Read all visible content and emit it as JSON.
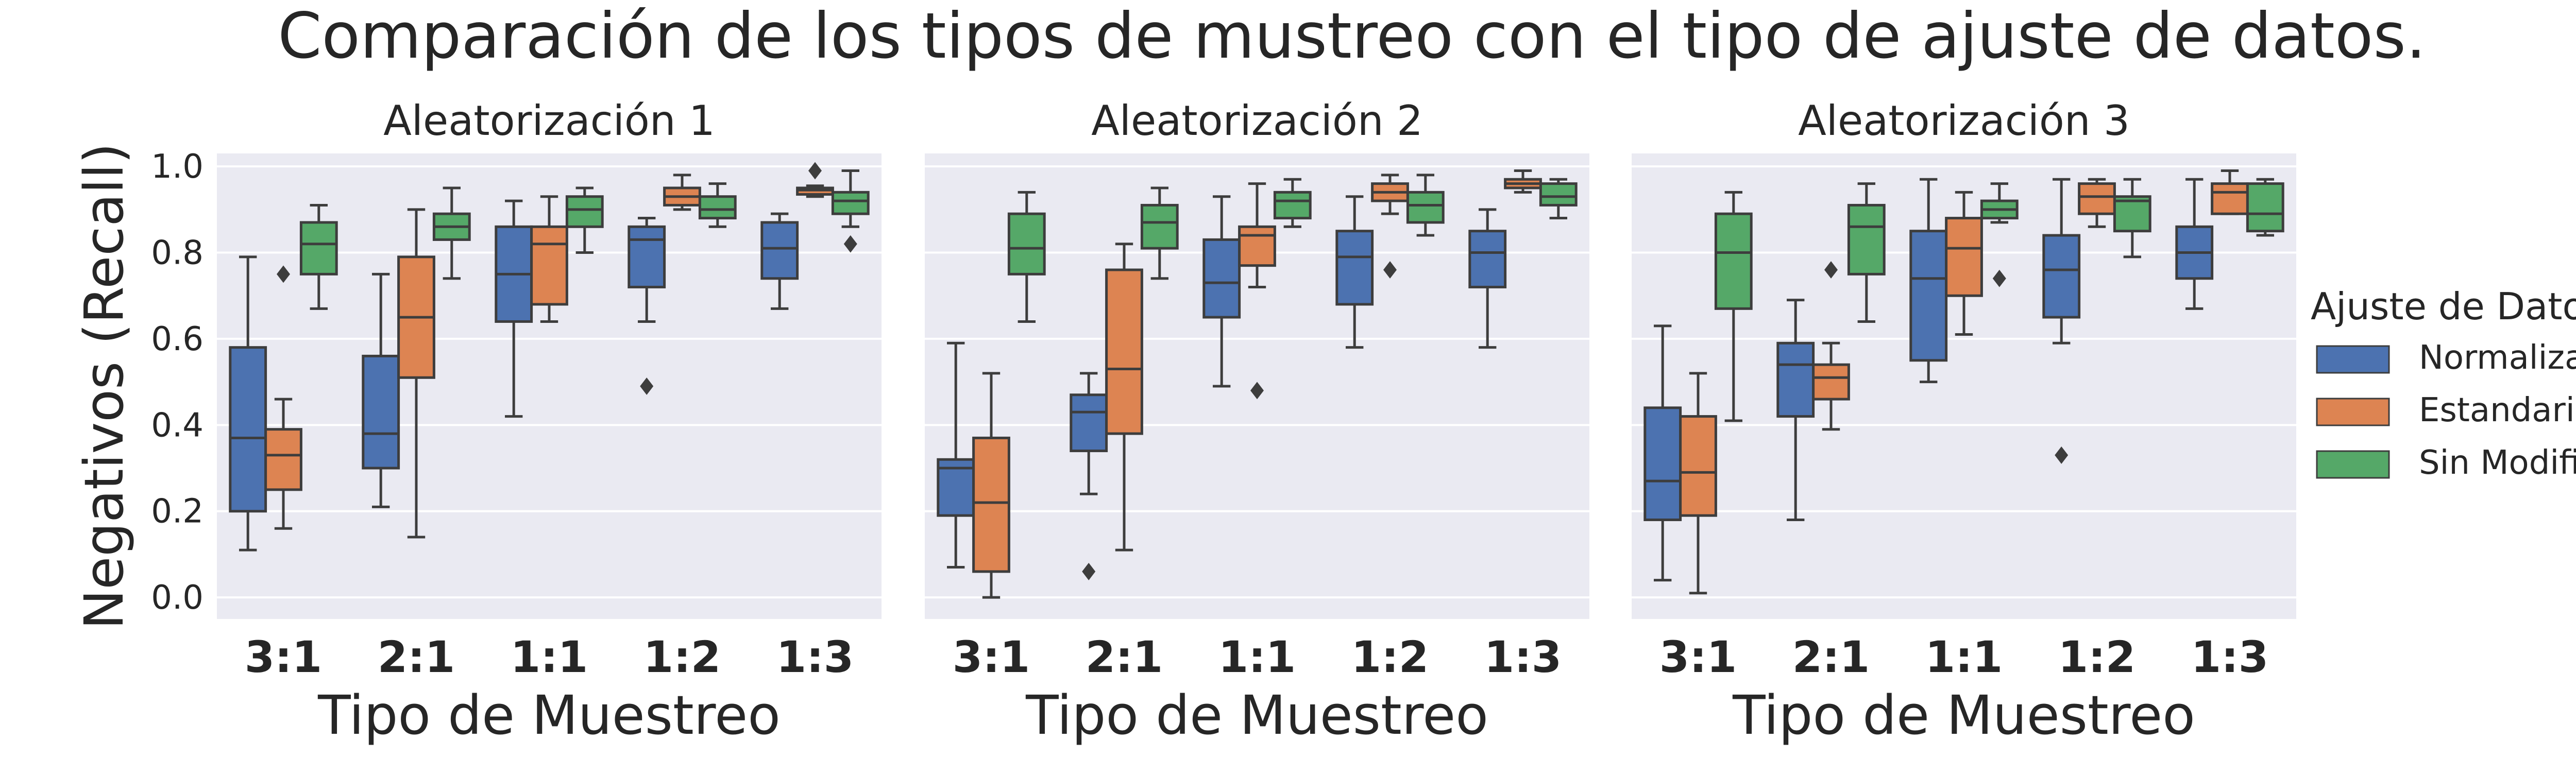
{
  "colors": {
    "Normalizados": "#4c72b0",
    "Estandarizados": "#dd8452",
    "Sin Modificación": "#55a868",
    "panel_background": "#eaeaf2",
    "grid": "#ffffff",
    "line": "#3d3d3d"
  },
  "chart_data": {
    "type": "box",
    "title": "Comparación de los tipos de mustreo con el tipo de ajuste de datos.",
    "ylabel": "Negativos (Recall)",
    "xlabel": "Tipo de Muestreo",
    "categories": [
      "3:1",
      "2:1",
      "1:1",
      "1:2",
      "1:3"
    ],
    "ylim": [
      -0.05,
      1.03
    ],
    "yticks": [
      "0.0",
      "0.2",
      "0.4",
      "0.6",
      "0.8",
      "1.0"
    ],
    "grid": true,
    "legend": {
      "title": "Ajuste de Datos",
      "position": "right",
      "entries": [
        "Normalizados",
        "Estandarizados",
        "Sin Modificación"
      ]
    },
    "panels": [
      {
        "title": "Aleatorización 1",
        "series": [
          {
            "name": "Normalizados",
            "boxes": [
              {
                "whislo": 0.11,
                "q1": 0.2,
                "med": 0.37,
                "q3": 0.58,
                "whishi": 0.79,
                "fliers": []
              },
              {
                "whislo": 0.21,
                "q1": 0.3,
                "med": 0.38,
                "q3": 0.56,
                "whishi": 0.75,
                "fliers": []
              },
              {
                "whislo": 0.42,
                "q1": 0.64,
                "med": 0.75,
                "q3": 0.86,
                "whishi": 0.92,
                "fliers": []
              },
              {
                "whislo": 0.64,
                "q1": 0.72,
                "med": 0.83,
                "q3": 0.86,
                "whishi": 0.88,
                "fliers": [
                  0.49
                ]
              },
              {
                "whislo": 0.67,
                "q1": 0.74,
                "med": 0.81,
                "q3": 0.87,
                "whishi": 0.89,
                "fliers": []
              }
            ]
          },
          {
            "name": "Estandarizados",
            "boxes": [
              {
                "whislo": 0.16,
                "q1": 0.25,
                "med": 0.33,
                "q3": 0.39,
                "whishi": 0.46,
                "fliers": [
                  0.75
                ]
              },
              {
                "whislo": 0.14,
                "q1": 0.51,
                "med": 0.65,
                "q3": 0.79,
                "whishi": 0.9,
                "fliers": []
              },
              {
                "whislo": 0.64,
                "q1": 0.68,
                "med": 0.82,
                "q3": 0.86,
                "whishi": 0.93,
                "fliers": []
              },
              {
                "whislo": 0.9,
                "q1": 0.91,
                "med": 0.93,
                "q3": 0.95,
                "whishi": 0.98,
                "fliers": []
              },
              {
                "whislo": 0.93,
                "q1": 0.935,
                "med": 0.945,
                "q3": 0.95,
                "whishi": 0.955,
                "fliers": [
                  0.99
                ]
              }
            ]
          },
          {
            "name": "Sin Modificación",
            "boxes": [
              {
                "whislo": 0.67,
                "q1": 0.75,
                "med": 0.82,
                "q3": 0.87,
                "whishi": 0.91,
                "fliers": []
              },
              {
                "whislo": 0.74,
                "q1": 0.83,
                "med": 0.86,
                "q3": 0.89,
                "whishi": 0.95,
                "fliers": []
              },
              {
                "whislo": 0.8,
                "q1": 0.86,
                "med": 0.9,
                "q3": 0.93,
                "whishi": 0.95,
                "fliers": []
              },
              {
                "whislo": 0.86,
                "q1": 0.88,
                "med": 0.9,
                "q3": 0.93,
                "whishi": 0.96,
                "fliers": []
              },
              {
                "whislo": 0.86,
                "q1": 0.89,
                "med": 0.92,
                "q3": 0.94,
                "whishi": 0.99,
                "fliers": [
                  0.82
                ]
              }
            ]
          }
        ]
      },
      {
        "title": "Aleatorización 2",
        "series": [
          {
            "name": "Normalizados",
            "boxes": [
              {
                "whislo": 0.07,
                "q1": 0.19,
                "med": 0.3,
                "q3": 0.32,
                "whishi": 0.59,
                "fliers": []
              },
              {
                "whislo": 0.24,
                "q1": 0.34,
                "med": 0.43,
                "q3": 0.47,
                "whishi": 0.52,
                "fliers": [
                  0.06
                ]
              },
              {
                "whislo": 0.49,
                "q1": 0.65,
                "med": 0.73,
                "q3": 0.83,
                "whishi": 0.93,
                "fliers": []
              },
              {
                "whislo": 0.58,
                "q1": 0.68,
                "med": 0.79,
                "q3": 0.85,
                "whishi": 0.93,
                "fliers": []
              },
              {
                "whislo": 0.58,
                "q1": 0.72,
                "med": 0.8,
                "q3": 0.85,
                "whishi": 0.9,
                "fliers": []
              }
            ]
          },
          {
            "name": "Estandarizados",
            "boxes": [
              {
                "whislo": 0.0,
                "q1": 0.06,
                "med": 0.22,
                "q3": 0.37,
                "whishi": 0.52,
                "fliers": []
              },
              {
                "whislo": 0.11,
                "q1": 0.38,
                "med": 0.53,
                "q3": 0.76,
                "whishi": 0.82,
                "fliers": []
              },
              {
                "whislo": 0.72,
                "q1": 0.77,
                "med": 0.84,
                "q3": 0.86,
                "whishi": 0.96,
                "fliers": [
                  0.48
                ]
              },
              {
                "whislo": 0.89,
                "q1": 0.92,
                "med": 0.94,
                "q3": 0.96,
                "whishi": 0.98,
                "fliers": [
                  0.76
                ]
              },
              {
                "whislo": 0.94,
                "q1": 0.95,
                "med": 0.96,
                "q3": 0.97,
                "whishi": 0.99,
                "fliers": []
              }
            ]
          },
          {
            "name": "Sin Modificación",
            "boxes": [
              {
                "whislo": 0.64,
                "q1": 0.75,
                "med": 0.81,
                "q3": 0.89,
                "whishi": 0.94,
                "fliers": []
              },
              {
                "whislo": 0.74,
                "q1": 0.81,
                "med": 0.87,
                "q3": 0.91,
                "whishi": 0.95,
                "fliers": []
              },
              {
                "whislo": 0.86,
                "q1": 0.88,
                "med": 0.92,
                "q3": 0.94,
                "whishi": 0.97,
                "fliers": []
              },
              {
                "whislo": 0.84,
                "q1": 0.87,
                "med": 0.91,
                "q3": 0.94,
                "whishi": 0.98,
                "fliers": []
              },
              {
                "whislo": 0.88,
                "q1": 0.91,
                "med": 0.93,
                "q3": 0.96,
                "whishi": 0.97,
                "fliers": []
              }
            ]
          }
        ]
      },
      {
        "title": "Aleatorización 3",
        "series": [
          {
            "name": "Normalizados",
            "boxes": [
              {
                "whislo": 0.04,
                "q1": 0.18,
                "med": 0.27,
                "q3": 0.44,
                "whishi": 0.63,
                "fliers": []
              },
              {
                "whislo": 0.18,
                "q1": 0.42,
                "med": 0.54,
                "q3": 0.59,
                "whishi": 0.69,
                "fliers": []
              },
              {
                "whislo": 0.5,
                "q1": 0.55,
                "med": 0.74,
                "q3": 0.85,
                "whishi": 0.97,
                "fliers": []
              },
              {
                "whislo": 0.59,
                "q1": 0.65,
                "med": 0.76,
                "q3": 0.84,
                "whishi": 0.97,
                "fliers": [
                  0.33
                ]
              },
              {
                "whislo": 0.67,
                "q1": 0.74,
                "med": 0.8,
                "q3": 0.86,
                "whishi": 0.97,
                "fliers": []
              }
            ]
          },
          {
            "name": "Estandarizados",
            "boxes": [
              {
                "whislo": 0.01,
                "q1": 0.19,
                "med": 0.29,
                "q3": 0.42,
                "whishi": 0.52,
                "fliers": []
              },
              {
                "whislo": 0.39,
                "q1": 0.46,
                "med": 0.51,
                "q3": 0.54,
                "whishi": 0.59,
                "fliers": [
                  0.76
                ]
              },
              {
                "whislo": 0.61,
                "q1": 0.7,
                "med": 0.81,
                "q3": 0.88,
                "whishi": 0.94,
                "fliers": []
              },
              {
                "whislo": 0.86,
                "q1": 0.89,
                "med": 0.93,
                "q3": 0.96,
                "whishi": 0.97,
                "fliers": []
              },
              {
                "whislo": 0.89,
                "q1": 0.89,
                "med": 0.94,
                "q3": 0.96,
                "whishi": 0.99,
                "fliers": []
              }
            ]
          },
          {
            "name": "Sin Modificación",
            "boxes": [
              {
                "whislo": 0.41,
                "q1": 0.67,
                "med": 0.8,
                "q3": 0.89,
                "whishi": 0.94,
                "fliers": []
              },
              {
                "whislo": 0.64,
                "q1": 0.75,
                "med": 0.86,
                "q3": 0.91,
                "whishi": 0.96,
                "fliers": []
              },
              {
                "whislo": 0.87,
                "q1": 0.88,
                "med": 0.9,
                "q3": 0.92,
                "whishi": 0.96,
                "fliers": [
                  0.74
                ]
              },
              {
                "whislo": 0.79,
                "q1": 0.85,
                "med": 0.92,
                "q3": 0.93,
                "whishi": 0.97,
                "fliers": []
              },
              {
                "whislo": 0.84,
                "q1": 0.85,
                "med": 0.89,
                "q3": 0.96,
                "whishi": 0.97,
                "fliers": []
              }
            ]
          }
        ]
      }
    ]
  }
}
